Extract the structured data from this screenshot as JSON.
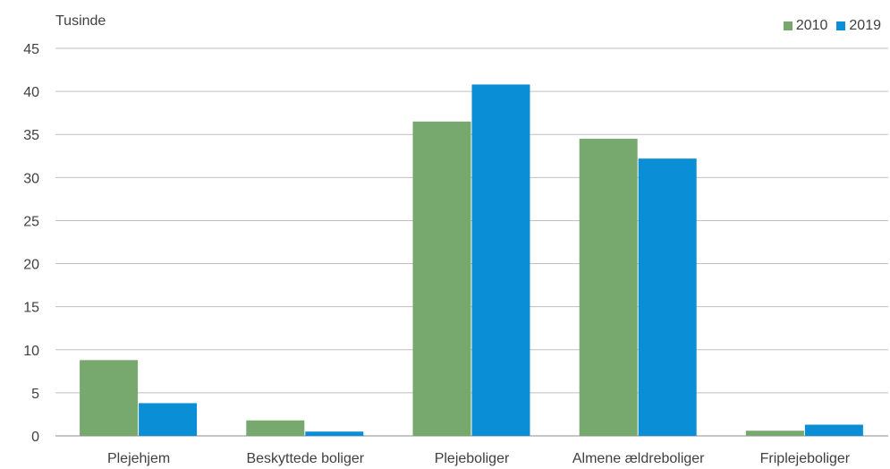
{
  "chart_data": {
    "type": "bar",
    "unit_label": "Tusinde",
    "categories": [
      "Plejehjem",
      "Beskyttede boliger",
      "Plejeboliger",
      "Almene ældreboliger",
      "Friplejeboliger"
    ],
    "series": [
      {
        "name": "2010",
        "color": "#77a86e",
        "values": [
          8.8,
          1.8,
          36.5,
          34.5,
          0.6
        ]
      },
      {
        "name": "2019",
        "color": "#0a8fd6",
        "values": [
          3.8,
          0.5,
          40.8,
          32.2,
          1.3
        ]
      }
    ],
    "ylim": [
      0,
      45
    ],
    "yticks": [
      0,
      5,
      10,
      15,
      20,
      25,
      30,
      35,
      40,
      45
    ],
    "grid": true,
    "legend_position": "top-right",
    "gridline_color": "#bfbfbf"
  }
}
